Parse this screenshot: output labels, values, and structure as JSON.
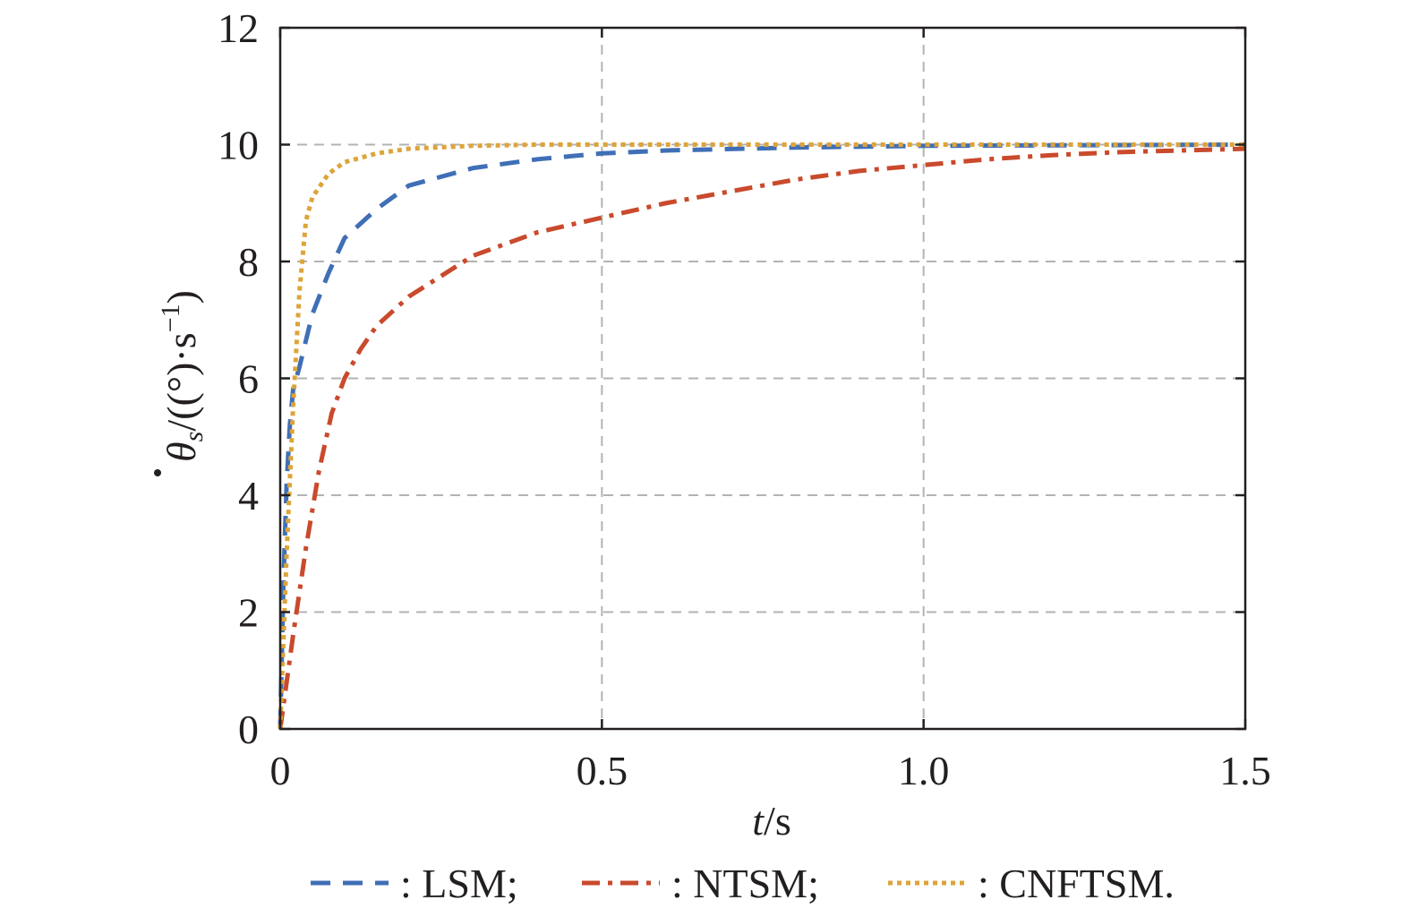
{
  "chart_data": {
    "type": "line",
    "xlabel_italic": "t",
    "xlabel_unit": "/s",
    "ylabel_symbol": "θ",
    "ylabel_subscript": "s",
    "ylabel_unit": "/((°)·s",
    "ylabel_exponent": "−1",
    "ylabel_close": ")",
    "xlim": [
      0,
      1.5
    ],
    "ylim": [
      0,
      12
    ],
    "x_ticks": [
      0,
      0.5,
      1.0,
      1.5
    ],
    "x_tick_labels": [
      "0",
      "0.5",
      "1.0",
      "1.5"
    ],
    "y_ticks": [
      0,
      2,
      4,
      6,
      8,
      10,
      12
    ],
    "y_tick_labels": [
      "0",
      "2",
      "4",
      "6",
      "8",
      "10",
      "12"
    ],
    "grid": true,
    "legend_position": "bottom",
    "series": [
      {
        "name": "LSM",
        "legend_label": ": LSM;",
        "color": "#3f6fb6",
        "style": "dashed",
        "x": [
          0,
          0.005,
          0.01,
          0.015,
          0.02,
          0.03,
          0.05,
          0.075,
          0.1,
          0.15,
          0.2,
          0.3,
          0.4,
          0.5,
          0.6,
          0.8,
          1.0,
          1.5
        ],
        "y": [
          0,
          2.5,
          4.2,
          5.2,
          5.8,
          6.2,
          7.1,
          7.8,
          8.4,
          8.9,
          9.3,
          9.6,
          9.75,
          9.85,
          9.9,
          9.95,
          9.98,
          10
        ]
      },
      {
        "name": "NTSM",
        "legend_label": ": NTSM;",
        "color": "#c94a2c",
        "style": "dashdot",
        "x": [
          0,
          0.02,
          0.04,
          0.06,
          0.08,
          0.1,
          0.125,
          0.15,
          0.2,
          0.3,
          0.4,
          0.5,
          0.6,
          0.7,
          0.8,
          0.9,
          1.0,
          1.1,
          1.2,
          1.3,
          1.4,
          1.5
        ],
        "y": [
          0,
          1.6,
          3.1,
          4.4,
          5.4,
          6.0,
          6.5,
          6.9,
          7.4,
          8.1,
          8.5,
          8.75,
          9.0,
          9.2,
          9.4,
          9.55,
          9.65,
          9.75,
          9.82,
          9.87,
          9.9,
          9.93
        ]
      },
      {
        "name": "CNFTSM",
        "legend_label": ": CNFTSM.",
        "color": "#dda43a",
        "style": "dotted",
        "x": [
          0,
          0.005,
          0.01,
          0.02,
          0.03,
          0.04,
          0.05,
          0.075,
          0.1,
          0.15,
          0.2,
          0.3,
          0.4,
          0.5,
          1.0,
          1.5
        ],
        "y": [
          0,
          1.5,
          3.0,
          5.5,
          7.5,
          8.7,
          9.1,
          9.5,
          9.7,
          9.85,
          9.93,
          9.98,
          10,
          10,
          10,
          10
        ]
      }
    ]
  }
}
